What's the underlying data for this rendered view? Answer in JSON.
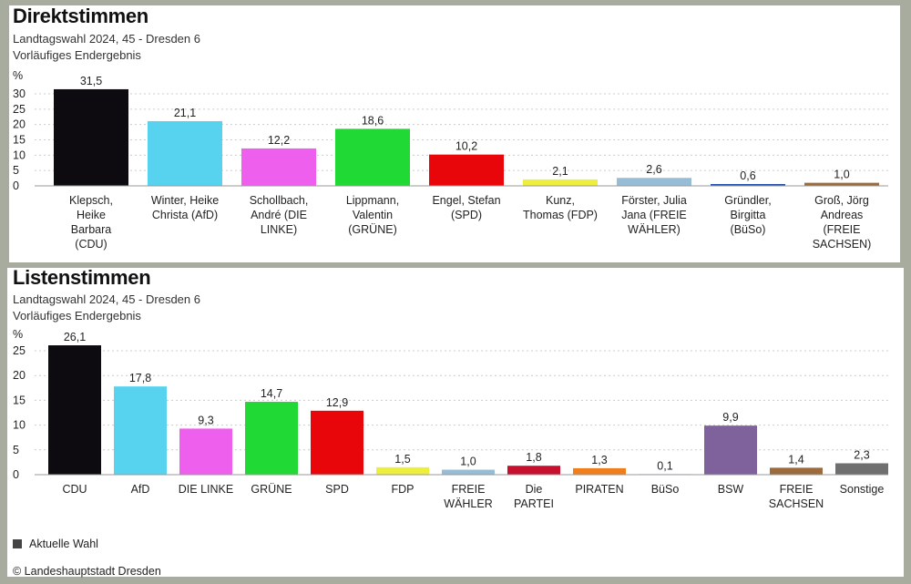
{
  "colors": {
    "background": "#a8ac9f",
    "panel": "#ffffff"
  },
  "chart_data": [
    {
      "type": "bar",
      "title": "Direktstimmen",
      "subtitle": [
        "Landtagswahl 2024, 45 - Dresden 6",
        "Vorläufiges Endergebnis"
      ],
      "ylabel": "%",
      "ylim": [
        0,
        30
      ],
      "yticks": [
        0,
        5,
        10,
        15,
        20,
        25,
        30
      ],
      "grid": true,
      "categories": [
        "Klepsch, Heike Barbara (CDU)",
        "Winter, Heike Christa (AfD)",
        "Schollbach, André (DIE LINKE)",
        "Lippmann, Valentin (GRÜNE)",
        "Engel, Stefan (SPD)",
        "Kunz, Thomas (FDP)",
        "Förster, Julia Jana (FREIE WÄHLER)",
        "Gründler, Birgitta (BüSo)",
        "Groß, Jörg Andreas (FREIE SACHSEN)"
      ],
      "category_lines": [
        [
          "Klepsch,",
          "Heike",
          "Barbara",
          "(CDU)"
        ],
        [
          "Winter, Heike",
          "Christa (AfD)"
        ],
        [
          "Schollbach,",
          "André (DIE",
          "LINKE)"
        ],
        [
          "Lippmann,",
          "Valentin",
          "(GRÜNE)"
        ],
        [
          "Engel, Stefan",
          "(SPD)"
        ],
        [
          "Kunz,",
          "Thomas (FDP)"
        ],
        [
          "Förster, Julia",
          "Jana (FREIE",
          "WÄHLER)"
        ],
        [
          "Gründler,",
          "Birgitta",
          "(BüSo)"
        ],
        [
          "Groß, Jörg",
          "Andreas",
          "(FREIE",
          "SACHSEN)"
        ]
      ],
      "values": [
        31.5,
        21.1,
        12.2,
        18.6,
        10.2,
        2.1,
        2.6,
        0.6,
        1.0
      ],
      "value_labels": [
        "31,5",
        "21,1",
        "12,2",
        "18,6",
        "10,2",
        "2,1",
        "2,6",
        "0,6",
        "1,0"
      ],
      "colors": [
        "#0d0b0f",
        "#57d3f0",
        "#ee5fee",
        "#21d934",
        "#e8060b",
        "#eeee3c",
        "#97bcd6",
        "#2151a8",
        "#9d6a3c"
      ]
    },
    {
      "type": "bar",
      "title": "Listenstimmen",
      "subtitle": [
        "Landtagswahl 2024, 45 - Dresden 6",
        "Vorläufiges Endergebnis"
      ],
      "ylabel": "%",
      "ylim": [
        0,
        25
      ],
      "yticks": [
        0,
        5,
        10,
        15,
        20,
        25
      ],
      "grid": true,
      "categories": [
        "CDU",
        "AfD",
        "DIE LINKE",
        "GRÜNE",
        "SPD",
        "FDP",
        "FREIE WÄHLER",
        "Die PARTEI",
        "PIRATEN",
        "BüSo",
        "BSW",
        "FREIE SACHSEN",
        "Sonstige"
      ],
      "category_lines": [
        [
          "CDU"
        ],
        [
          "AfD"
        ],
        [
          "DIE LINKE"
        ],
        [
          "GRÜNE"
        ],
        [
          "SPD"
        ],
        [
          "FDP"
        ],
        [
          "FREIE",
          "WÄHLER"
        ],
        [
          "Die",
          "PARTEI"
        ],
        [
          "PIRATEN"
        ],
        [
          "BüSo"
        ],
        [
          "BSW"
        ],
        [
          "FREIE",
          "SACHSEN"
        ],
        [
          "Sonstige"
        ]
      ],
      "values": [
        26.1,
        17.8,
        9.3,
        14.7,
        12.9,
        1.5,
        1.0,
        1.8,
        1.3,
        0.1,
        9.9,
        1.4,
        2.3
      ],
      "value_labels": [
        "26,1",
        "17,8",
        "9,3",
        "14,7",
        "12,9",
        "1,5",
        "1,0",
        "1,8",
        "1,3",
        "0,1",
        "9,9",
        "1,4",
        "2,3"
      ],
      "colors": [
        "#0d0b0f",
        "#57d3f0",
        "#ee5fee",
        "#21d934",
        "#e8060b",
        "#eeee3c",
        "#97bcd6",
        "#c8102e",
        "#f07e1a",
        "#2151a8",
        "#7f629b",
        "#9d6a3c",
        "#6f6f6f"
      ],
      "legend": {
        "label": "Aktuelle Wahl",
        "position": "bottom-left"
      }
    }
  ],
  "footer": {
    "copyright": "© Landeshauptstadt Dresden"
  }
}
